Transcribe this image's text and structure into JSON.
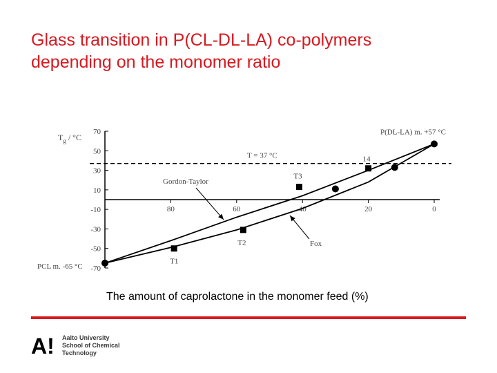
{
  "slide": {
    "title_line1": "Glass transition in P(CL-DL-LA) co-polymers",
    "title_line2": "depending on the monomer ratio",
    "caption": "The amount of caprolactone in the monomer feed (%)"
  },
  "footer": {
    "logo_mark": "A!",
    "org_line1": "Aalto University",
    "org_line2": "School of Chemical",
    "org_line3": "Technology"
  },
  "colors": {
    "accent": "#d71920",
    "ink": "#000000"
  },
  "chart_data": {
    "type": "line",
    "ylabel_main": "T",
    "ylabel_sub": "g",
    "ylabel_unit": " / °C",
    "xlabel": "",
    "xlim": [
      100,
      0
    ],
    "ylim": [
      -70,
      70
    ],
    "x_ticks": [
      80,
      60,
      40,
      20,
      0
    ],
    "y_ticks": [
      70,
      50,
      30,
      10,
      -10,
      -30,
      -50,
      -70
    ],
    "reference_line": {
      "y": 37,
      "label": "T = 37 °C"
    },
    "series": [
      {
        "name": "Gordon-Taylor",
        "x": [
          100,
          80,
          60,
          40,
          20,
          0
        ],
        "y": [
          -65,
          -42,
          -18,
          4,
          30,
          57
        ]
      },
      {
        "name": "Fox",
        "x": [
          100,
          80,
          60,
          40,
          20,
          0
        ],
        "y": [
          -65,
          -49,
          -31,
          -9,
          18,
          57
        ]
      }
    ],
    "points": [
      {
        "label": "PCL m. -65 °C",
        "x": 100,
        "y": -65,
        "marker": "circle"
      },
      {
        "label": "T1",
        "x": 79,
        "y": -50,
        "marker": "square"
      },
      {
        "label": "T2",
        "x": 58,
        "y": -31,
        "marker": "square"
      },
      {
        "label": "T3",
        "x": 41,
        "y": 13,
        "marker": "square"
      },
      {
        "label": "",
        "x": 30,
        "y": 11,
        "marker": "circle"
      },
      {
        "label": "14",
        "x": 20,
        "y": 32,
        "marker": "square"
      },
      {
        "label": "",
        "x": 12,
        "y": 33,
        "marker": "circle"
      },
      {
        "label": "P(DL-LA) m. +57 °C",
        "x": 0,
        "y": 57,
        "marker": "circle"
      }
    ],
    "annotations": [
      {
        "text": "Gordon-Taylor",
        "target_series": "Gordon-Taylor"
      },
      {
        "text": "Fox",
        "target_series": "Fox"
      }
    ]
  }
}
